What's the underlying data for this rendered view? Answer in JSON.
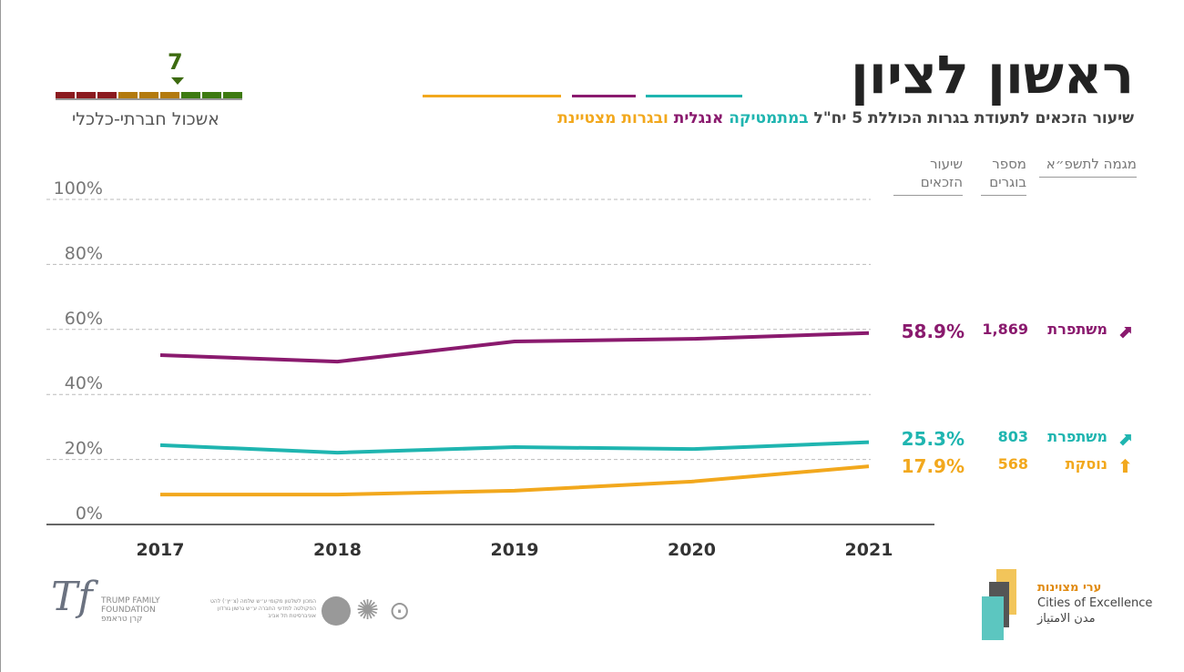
{
  "header": {
    "title": "ראשון לציון",
    "subtitle_parts": [
      {
        "text": "שיעור הזכאים לתעודת בגרות הכוללת 5 יח\"ל ",
        "color": "#444444"
      },
      {
        "text": "במתמטיקה",
        "color": "#1fb5b0"
      },
      {
        "text": " "
      },
      {
        "text": "אנגלית",
        "color": "#8a1a6e"
      },
      {
        "text": " "
      },
      {
        "text": "ובגרות מצטיינת",
        "color": "#f2a81d"
      }
    ]
  },
  "cluster": {
    "value": "7",
    "label": "אשכול חברתי-כלכלי",
    "colors": [
      "#8b1a1f",
      "#8b1a1f",
      "#8b1a1f",
      "#b37a0e",
      "#b37a0e",
      "#b37a0e",
      "#3d7a10",
      "#3d7a10",
      "#3d7a10"
    ]
  },
  "table": {
    "headers": {
      "trend": "מגמה לתשפ״א",
      "graduates": "מספר בוגרים",
      "rate": "שיעור הזכאים"
    },
    "rows": [
      {
        "trend": "משתפרת",
        "trend_icon": "arrow-up-right-icon",
        "graduates": "1,869",
        "rate": "58.9%",
        "color": "#8a1a6e"
      },
      {
        "trend": "משתפרת",
        "trend_icon": "arrow-up-right-icon",
        "graduates": "803",
        "rate": "25.3%",
        "color": "#1fb5b0"
      },
      {
        "trend": "נוסקת",
        "trend_icon": "arrow-up-icon",
        "graduates": "568",
        "rate": "17.9%",
        "color": "#f2a81d"
      }
    ]
  },
  "chart_data": {
    "type": "line",
    "x": [
      "2017",
      "2018",
      "2019",
      "2020",
      "2021"
    ],
    "ylim": [
      0,
      100
    ],
    "yticks": [
      "0%",
      "20%",
      "40%",
      "60%",
      "80%",
      "100%"
    ],
    "grid": true,
    "series": [
      {
        "name": "אנגלית",
        "color": "#8a1a6e",
        "values": [
          52.1,
          50.1,
          56.3,
          57.1,
          58.9
        ]
      },
      {
        "name": "במתמטיקה",
        "color": "#1fb5b0",
        "values": [
          24.4,
          22.1,
          23.8,
          23.2,
          25.3
        ]
      },
      {
        "name": "ובגרות מצטיינת",
        "color": "#f2a81d",
        "values": [
          9.2,
          9.2,
          10.4,
          13.2,
          17.9
        ]
      }
    ]
  },
  "footer": {
    "trump": [
      "TRUMP FAMILY",
      "FOUNDATION",
      "קרן טראמפ"
    ],
    "institute": [
      "המכון לשלטון מקומי ע״ש שלמה (צ׳יץ׳) להט",
      "הפקולטה למדעי החברה ע״ש גרשון גורדון",
      "אוניברסיטת תל אביב"
    ],
    "cities": [
      "ערי מצוינות",
      "Cities of Excellence",
      "مدن الامتياز"
    ]
  }
}
